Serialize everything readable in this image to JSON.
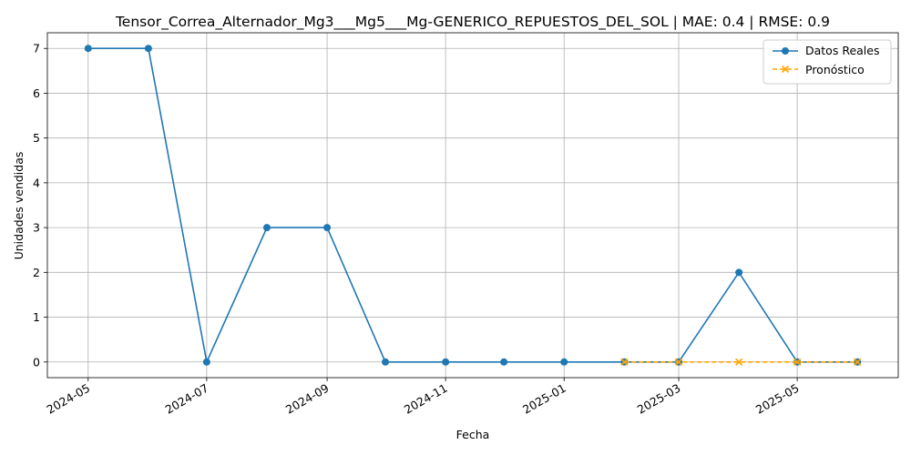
{
  "chart_data": {
    "type": "line",
    "title": "Tensor_Correa_Alternador_Mg3___Mg5___Mg-GENERICO_REPUESTOS_DEL_SOL | MAE: 0.4 | RMSE: 0.9",
    "xlabel": "Fecha",
    "ylabel": "Unidades vendidas",
    "ylim": [
      -0.35,
      7.35
    ],
    "xlim": [
      "2024-04-10",
      "2025-06-22"
    ],
    "grid": true,
    "legend_position": "top-right",
    "x_ticks": [
      "2024-05",
      "2024-07",
      "2024-09",
      "2024-11",
      "2025-01",
      "2025-03",
      "2025-05"
    ],
    "x_tick_dates": [
      "2024-05-01",
      "2024-07-01",
      "2024-09-01",
      "2024-11-01",
      "2025-01-01",
      "2025-03-01",
      "2025-05-01"
    ],
    "y_ticks": [
      0,
      1,
      2,
      3,
      4,
      5,
      6,
      7
    ],
    "series": [
      {
        "name": "Datos Reales",
        "color": "#1f77b4",
        "marker": "circle",
        "linestyle": "solid",
        "x": [
          "2024-05-01",
          "2024-06-01",
          "2024-07-01",
          "2024-08-01",
          "2024-09-01",
          "2024-10-01",
          "2024-11-01",
          "2024-12-01",
          "2025-01-01",
          "2025-02-01",
          "2025-03-01",
          "2025-04-01",
          "2025-05-01",
          "2025-06-01"
        ],
        "values": [
          7,
          7,
          0,
          3,
          3,
          0,
          0,
          0,
          0,
          0,
          0,
          2,
          0,
          0
        ]
      },
      {
        "name": "Pronóstico",
        "color": "#ffa500",
        "marker": "x",
        "linestyle": "dashed",
        "x": [
          "2025-02-01",
          "2025-03-01",
          "2025-04-01",
          "2025-05-01",
          "2025-06-01"
        ],
        "values": [
          0,
          0,
          0,
          0,
          0
        ]
      }
    ]
  }
}
